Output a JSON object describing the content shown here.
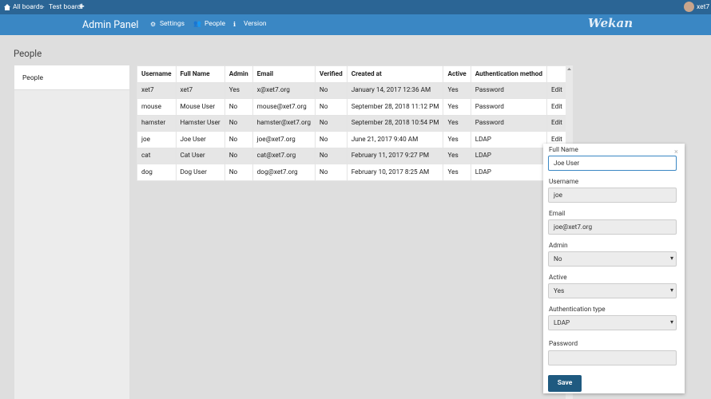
{
  "top_bar": {
    "breadcrumbs": [
      "All boards",
      "Test board"
    ],
    "user": "xet7"
  },
  "header": {
    "title": "Admin Panel",
    "nav": [
      "Settings",
      "People",
      "Version"
    ],
    "logo": "Wekan"
  },
  "page_title": "People",
  "sidebar": [
    "People"
  ],
  "table": {
    "columns": [
      "Username",
      "Full Name",
      "Admin",
      "Email",
      "Verified",
      "Created at",
      "Active",
      "Authentication method"
    ],
    "rows": [
      [
        "xet7",
        "xet7",
        "Yes",
        "x@xet7.org",
        "No",
        "January 14, 2017 12:36 AM",
        "Yes",
        "Password",
        "Edit"
      ],
      [
        "mouse",
        "Mouse User",
        "No",
        "mouse@xet7.org",
        "No",
        "September 28, 2018 11:12 PM",
        "Yes",
        "Password",
        "Edit"
      ],
      [
        "hamster",
        "Hamster User",
        "No",
        "hamster@xet7.org",
        "No",
        "September 28, 2018 10:54 PM",
        "Yes",
        "Password",
        "Edit"
      ],
      [
        "joe",
        "Joe User",
        "No",
        "joe@xet7.org",
        "No",
        "June 21, 2017 9:40 AM",
        "Yes",
        "LDAP",
        "Edit"
      ],
      [
        "cat",
        "Cat User",
        "No",
        "cat@xet7.org",
        "No",
        "February 11, 2017 9:27 PM",
        "Yes",
        "LDAP"
      ],
      [
        "dog",
        "Dog User",
        "No",
        "dog@xet7.org",
        "No",
        "February 10, 2017 8:25 AM",
        "Yes",
        "LDAP"
      ]
    ]
  },
  "edit_form": {
    "fields": [
      {
        "label": "Full Name",
        "value": "Joe User"
      },
      {
        "label": "Username",
        "value": "joe"
      },
      {
        "label": "Email",
        "value": "joe@xet7.org"
      },
      {
        "label": "Admin",
        "value": "No"
      },
      {
        "label": "Active",
        "value": "Yes"
      },
      {
        "label": "Authentication type",
        "value": "LDAP"
      },
      {
        "label": "Password"
      }
    ],
    "button": "Save"
  }
}
